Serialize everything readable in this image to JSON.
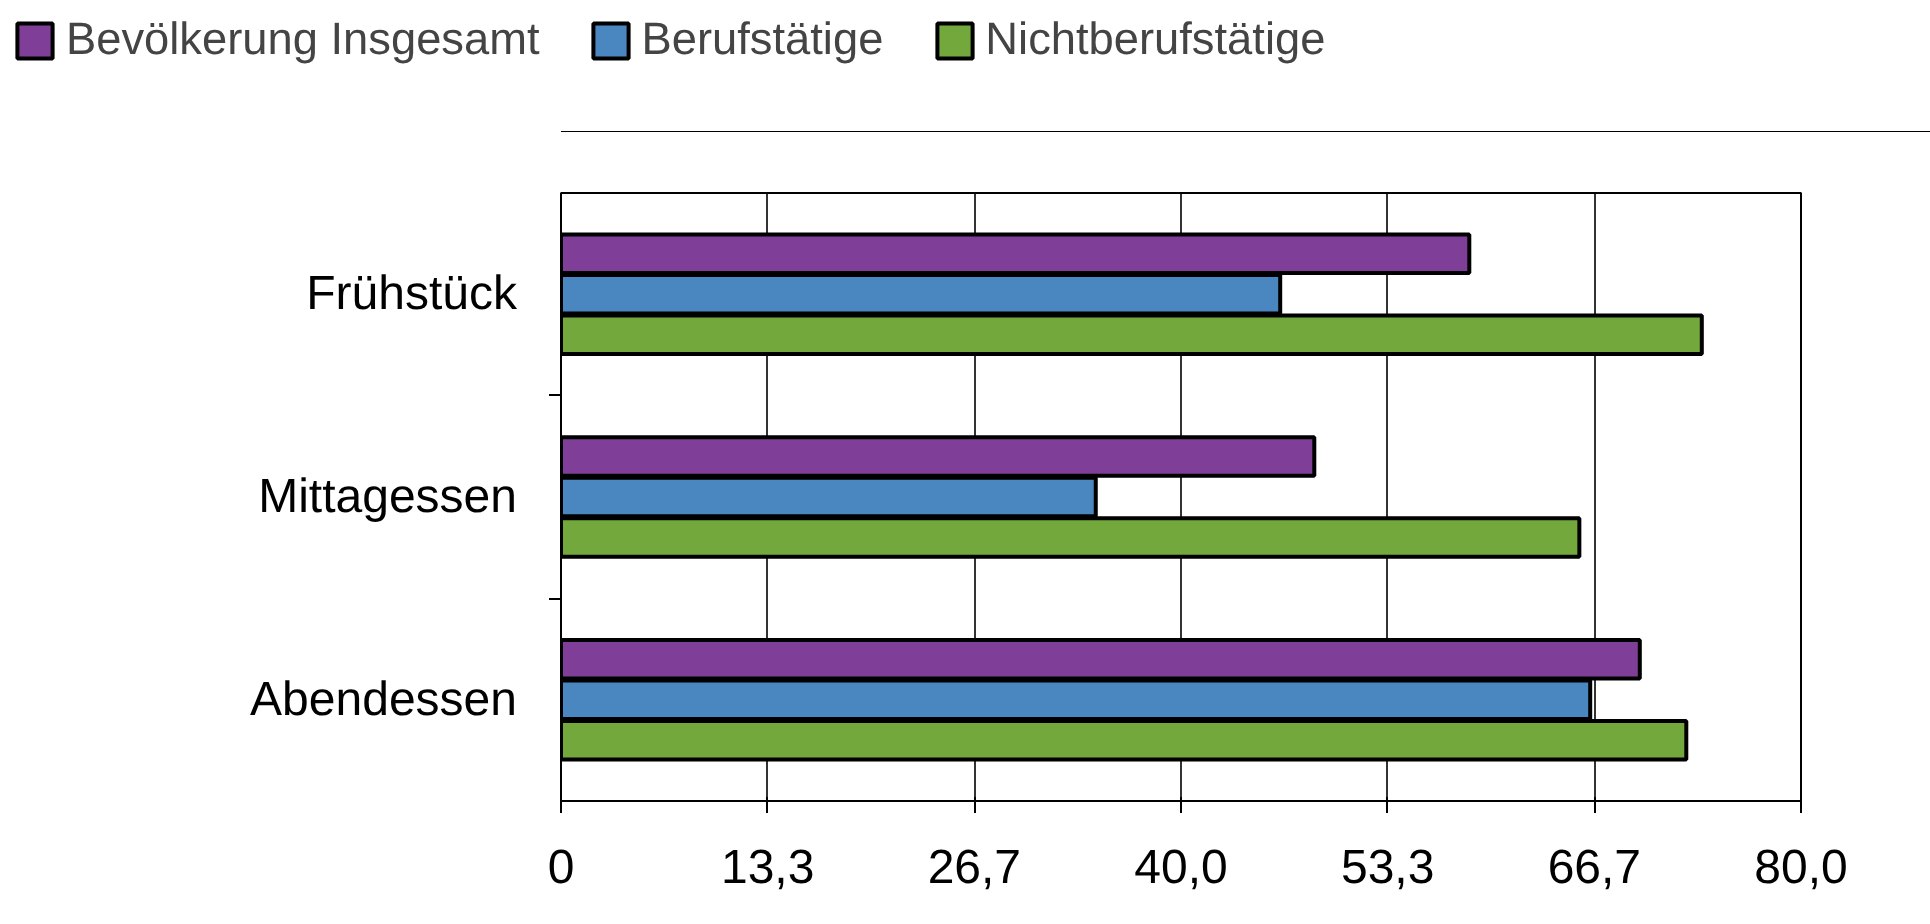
{
  "chart_data": {
    "type": "bar",
    "orientation": "horizontal",
    "categories": [
      "Frühstück",
      "Mittagessen",
      "Abendessen"
    ],
    "series": [
      {
        "name": "Bevölkerung Insgesamt",
        "color": "#7f3f98",
        "values": [
          58.6,
          48.6,
          69.6
        ]
      },
      {
        "name": "Berufstätige",
        "color": "#4a86c0",
        "values": [
          46.4,
          34.5,
          66.4
        ]
      },
      {
        "name": "Nichtberufstätige",
        "color": "#73a93c",
        "values": [
          73.6,
          65.7,
          72.6
        ]
      }
    ],
    "xlim": [
      0,
      80
    ],
    "xticks": [
      0,
      {
        "value": 13.333,
        "label": "13,3"
      },
      {
        "value": 26.667,
        "label": "26,7"
      },
      {
        "value": 40,
        "label": "40,0"
      },
      {
        "value": 53.333,
        "label": "53,3"
      },
      {
        "value": 66.667,
        "label": "66,7"
      },
      {
        "value": 80,
        "label": "80,0"
      }
    ],
    "grid": "x",
    "legend": "top"
  }
}
